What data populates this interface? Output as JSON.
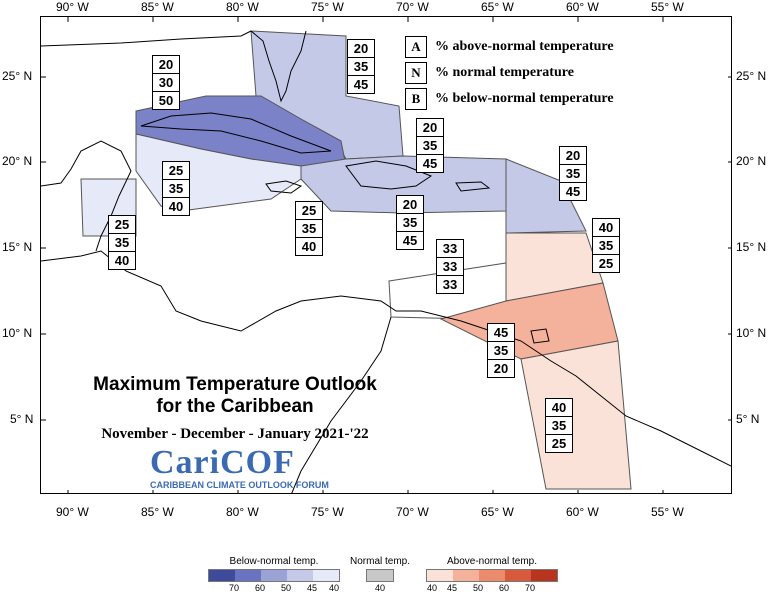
{
  "map": {
    "title_line1": "Maximum Temperature Outlook",
    "title_line2": "for the Caribbean",
    "period": "November - December - January  2021-'22",
    "logo": {
      "name": "CariCOF",
      "tagline": "CARIBBEAN CLIMATE OUTLOOK FORUM"
    },
    "lon_labels": [
      "90° W",
      "85° W",
      "80° W",
      "75° W",
      "70° W",
      "65° W",
      "60° W",
      "55° W"
    ],
    "lat_labels": [
      "25° N",
      "20° N",
      "15° N",
      "10° N",
      "5° N"
    ]
  },
  "key": [
    {
      "letter": "A",
      "text": "% above-normal temperature"
    },
    {
      "letter": "N",
      "text": "% normal temperature"
    },
    {
      "letter": "B",
      "text": "% below-normal temperature"
    }
  ],
  "regions": [
    {
      "name": "bahamas",
      "values": [
        "20",
        "35",
        "45"
      ],
      "color": "#c5c9e8"
    },
    {
      "name": "cuba",
      "values": [
        "20",
        "30",
        "50"
      ],
      "color": "#7b82c8"
    },
    {
      "name": "cayman-jamaica-west",
      "values": [
        "25",
        "35",
        "40"
      ],
      "color": "#e6e9f7"
    },
    {
      "name": "belize",
      "values": [
        "25",
        "35",
        "40"
      ],
      "color": "#e6e9f7"
    },
    {
      "name": "jamaica",
      "values": [
        "25",
        "35",
        "40"
      ],
      "color": "#e6e9f7"
    },
    {
      "name": "hispaniola-north",
      "values": [
        "20",
        "35",
        "45"
      ],
      "color": "#c5c9e8"
    },
    {
      "name": "hispaniola-puerto-rico",
      "values": [
        "20",
        "35",
        "45"
      ],
      "color": "#c5c9e8"
    },
    {
      "name": "leeward-islands",
      "values": [
        "20",
        "35",
        "45"
      ],
      "color": "#c5c9e8"
    },
    {
      "name": "windward-islands",
      "values": [
        "40",
        "35",
        "25"
      ],
      "color": "#fbe2d8"
    },
    {
      "name": "abc-islands",
      "values": [
        "33",
        "33",
        "33"
      ],
      "color": "#ffffff"
    },
    {
      "name": "trinidad",
      "values": [
        "45",
        "35",
        "20"
      ],
      "color": "#f4b19b"
    },
    {
      "name": "guianas",
      "values": [
        "40",
        "35",
        "25"
      ],
      "color": "#fbe2d8"
    }
  ],
  "legend": {
    "below": {
      "title": "Below-normal temp.",
      "ticks": [
        "70",
        "60",
        "50",
        "45",
        "40"
      ],
      "colors": [
        "#3e4a9a",
        "#6a73c0",
        "#9aa2d6",
        "#c5c9e8",
        "#e6e9f7"
      ]
    },
    "normal": {
      "title": "Normal temp.",
      "ticks": [
        "40"
      ],
      "colors": [
        "#c8c8c8"
      ]
    },
    "above": {
      "title": "Above-normal temp.",
      "ticks": [
        "40",
        "45",
        "50",
        "60",
        "70"
      ],
      "colors": [
        "#fbe2d8",
        "#f4b19b",
        "#ea8b6b",
        "#d65a3b",
        "#b8341e"
      ]
    }
  }
}
